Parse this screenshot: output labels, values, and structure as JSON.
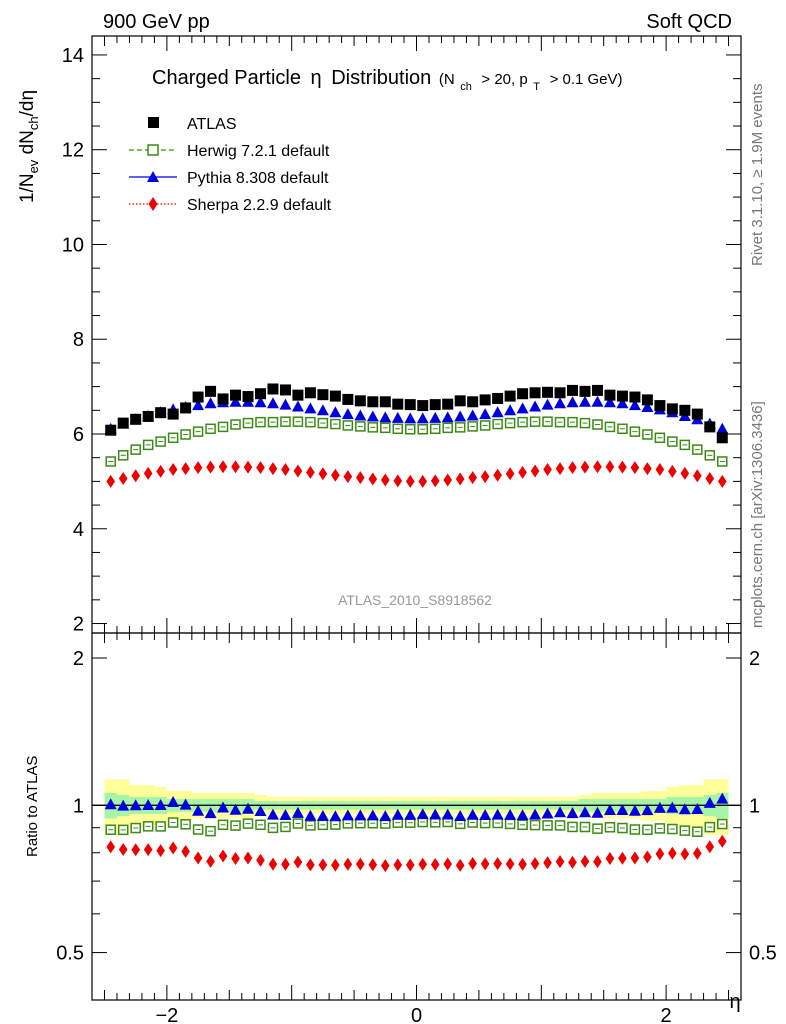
{
  "header": {
    "energy": "900 GeV pp",
    "category": "Soft QCD"
  },
  "side_labels": {
    "rivet": "Rivet 3.1.10, ≥ 1.9M events",
    "mcplots": "mcplots.cern.ch [arXiv:1306.3436]"
  },
  "analysis_id": "ATLAS_2010_S8918562",
  "title": {
    "main": "Charged Particle",
    "eta": "η",
    "distribution": "Distribution",
    "cut_prefix": "(N",
    "cut_sub1": "ch",
    "cut_mid": "> 20, p",
    "cut_sub2": "T",
    "cut_suffix": "> 0.1 GeV)"
  },
  "y_label_main": {
    "p1": "1/N",
    "s1": "ev",
    "p2": " dN",
    "s2": "ch",
    "p3": "/dη"
  },
  "y_label_ratio": "Ratio to ATLAS",
  "x_label": "η",
  "colors": {
    "atlas": "#000000",
    "herwig": "#3a8a14",
    "pythia": "#0000dd",
    "sherpa": "#ee0000",
    "band_green": "#a6f5a6",
    "band_yellow": "#ffff99"
  },
  "chart_data": [
    {
      "type": "scatter",
      "panel": "main",
      "xlim": [
        -2.6,
        2.6
      ],
      "ylim": [
        1.8,
        14.4
      ],
      "yticks": [
        2,
        4,
        6,
        8,
        10,
        12,
        14
      ],
      "x": [
        -2.45,
        -2.35,
        -2.25,
        -2.15,
        -2.05,
        -1.95,
        -1.85,
        -1.75,
        -1.65,
        -1.55,
        -1.45,
        -1.35,
        -1.25,
        -1.15,
        -1.05,
        -0.95,
        -0.85,
        -0.75,
        -0.65,
        -0.55,
        -0.45,
        -0.35,
        -0.25,
        -0.15,
        -0.05,
        0.05,
        0.15,
        0.25,
        0.35,
        0.45,
        0.55,
        0.65,
        0.75,
        0.85,
        0.95,
        1.05,
        1.15,
        1.25,
        1.35,
        1.45,
        1.55,
        1.65,
        1.75,
        1.85,
        1.95,
        2.05,
        2.15,
        2.25,
        2.35,
        2.45
      ],
      "series": [
        {
          "name": "ATLAS",
          "marker": "square",
          "values": [
            6.08,
            6.23,
            6.31,
            6.37,
            6.45,
            6.42,
            6.55,
            6.78,
            6.9,
            6.74,
            6.82,
            6.79,
            6.85,
            6.95,
            6.93,
            6.82,
            6.87,
            6.83,
            6.8,
            6.73,
            6.7,
            6.68,
            6.68,
            6.63,
            6.62,
            6.6,
            6.62,
            6.63,
            6.7,
            6.68,
            6.72,
            6.75,
            6.8,
            6.85,
            6.87,
            6.88,
            6.87,
            6.92,
            6.9,
            6.92,
            6.82,
            6.8,
            6.78,
            6.72,
            6.6,
            6.53,
            6.5,
            6.42,
            6.15,
            5.92
          ]
        },
        {
          "name": "Herwig 7.2.1 default",
          "marker": "open-square",
          "values": [
            5.42,
            5.55,
            5.67,
            5.77,
            5.84,
            5.92,
            5.99,
            6.05,
            6.11,
            6.15,
            6.2,
            6.23,
            6.25,
            6.25,
            6.26,
            6.26,
            6.25,
            6.23,
            6.21,
            6.18,
            6.16,
            6.14,
            6.13,
            6.11,
            6.1,
            6.1,
            6.11,
            6.13,
            6.14,
            6.16,
            6.18,
            6.21,
            6.23,
            6.25,
            6.26,
            6.26,
            6.25,
            6.25,
            6.23,
            6.2,
            6.15,
            6.11,
            6.05,
            5.99,
            5.92,
            5.84,
            5.77,
            5.67,
            5.55,
            5.42
          ]
        },
        {
          "name": "Pythia 8.308 default",
          "marker": "triangle",
          "values": [
            6.11,
            6.22,
            6.31,
            6.38,
            6.46,
            6.52,
            6.57,
            6.61,
            6.65,
            6.67,
            6.68,
            6.68,
            6.67,
            6.65,
            6.62,
            6.58,
            6.54,
            6.5,
            6.46,
            6.42,
            6.39,
            6.37,
            6.35,
            6.34,
            6.33,
            6.33,
            6.34,
            6.35,
            6.37,
            6.39,
            6.42,
            6.46,
            6.5,
            6.54,
            6.58,
            6.62,
            6.65,
            6.67,
            6.68,
            6.68,
            6.67,
            6.65,
            6.61,
            6.57,
            6.52,
            6.46,
            6.38,
            6.31,
            6.22,
            6.11
          ]
        },
        {
          "name": "Sherpa 2.2.9 default",
          "marker": "diamond",
          "values": [
            5.0,
            5.06,
            5.12,
            5.17,
            5.21,
            5.25,
            5.27,
            5.29,
            5.3,
            5.31,
            5.31,
            5.3,
            5.29,
            5.27,
            5.25,
            5.22,
            5.19,
            5.16,
            5.13,
            5.1,
            5.08,
            5.05,
            5.03,
            5.01,
            5.0,
            5.0,
            5.01,
            5.03,
            5.05,
            5.08,
            5.1,
            5.13,
            5.16,
            5.19,
            5.22,
            5.25,
            5.27,
            5.29,
            5.3,
            5.31,
            5.31,
            5.3,
            5.29,
            5.27,
            5.25,
            5.21,
            5.17,
            5.12,
            5.06,
            5.0
          ]
        }
      ]
    },
    {
      "type": "scatter",
      "panel": "ratio",
      "xlim": [
        -2.6,
        2.6
      ],
      "ylim": [
        0.4,
        2.25
      ],
      "yticks": [
        0.5,
        1,
        2
      ],
      "xticks": [
        -2,
        0,
        2
      ],
      "reference": 1.0,
      "band_green_halfwidth": [
        0.06,
        0.05,
        0.04,
        0.04,
        0.04,
        0.03,
        0.03,
        0.03,
        0.03,
        0.03,
        0.03,
        0.03,
        0.02,
        0.02,
        0.02,
        0.02,
        0.02,
        0.02,
        0.02,
        0.02,
        0.02,
        0.02,
        0.02,
        0.02,
        0.02,
        0.02,
        0.02,
        0.02,
        0.02,
        0.02,
        0.02,
        0.02,
        0.02,
        0.02,
        0.02,
        0.02,
        0.02,
        0.02,
        0.03,
        0.03,
        0.03,
        0.03,
        0.03,
        0.03,
        0.03,
        0.04,
        0.04,
        0.04,
        0.05,
        0.06
      ],
      "band_yellow_halfwidth": [
        0.13,
        0.13,
        0.1,
        0.1,
        0.09,
        0.07,
        0.07,
        0.06,
        0.06,
        0.06,
        0.06,
        0.06,
        0.05,
        0.04,
        0.04,
        0.04,
        0.04,
        0.04,
        0.04,
        0.04,
        0.04,
        0.04,
        0.04,
        0.04,
        0.04,
        0.04,
        0.04,
        0.04,
        0.04,
        0.04,
        0.04,
        0.04,
        0.04,
        0.04,
        0.04,
        0.04,
        0.04,
        0.04,
        0.05,
        0.06,
        0.06,
        0.06,
        0.06,
        0.07,
        0.07,
        0.09,
        0.1,
        0.1,
        0.13,
        0.13
      ]
    }
  ]
}
